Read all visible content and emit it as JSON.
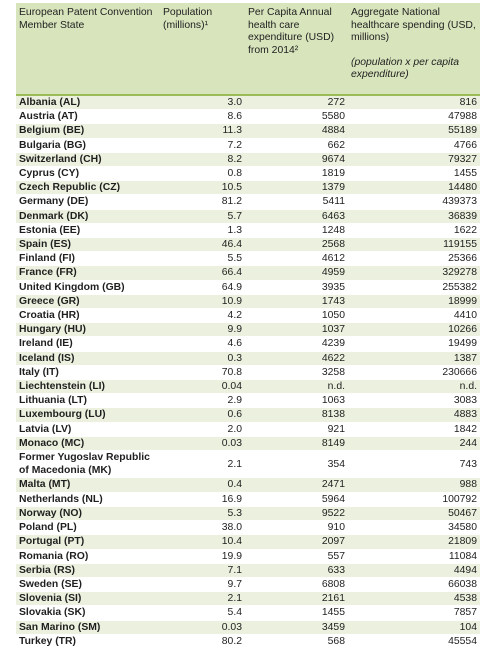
{
  "table": {
    "header": [
      "European Patent Convention Member State",
      "Population (millions)¹",
      "Per Capita Annual health care expenditure (USD) from 2014²",
      "Aggregate National healthcare spending (USD, millions)"
    ],
    "header_note": "(population x per capita expenditure)",
    "rows": [
      [
        "Albania (AL)",
        "3.0",
        "272",
        "816"
      ],
      [
        "Austria (AT)",
        "8.6",
        "5580",
        "47988"
      ],
      [
        "Belgium (BE)",
        "11.3",
        "4884",
        "55189"
      ],
      [
        "Bulgaria (BG)",
        "7.2",
        "662",
        "4766"
      ],
      [
        "Switzerland (CH)",
        "8.2",
        "9674",
        "79327"
      ],
      [
        "Cyprus (CY)",
        "0.8",
        "1819",
        "1455"
      ],
      [
        "Czech Republic (CZ)",
        "10.5",
        "1379",
        "14480"
      ],
      [
        "Germany (DE)",
        "81.2",
        "5411",
        "439373"
      ],
      [
        "Denmark (DK)",
        "5.7",
        "6463",
        "36839"
      ],
      [
        "Estonia (EE)",
        "1.3",
        "1248",
        "1622"
      ],
      [
        "Spain (ES)",
        "46.4",
        "2568",
        "119155"
      ],
      [
        "Finland (FI)",
        "5.5",
        "4612",
        "25366"
      ],
      [
        "France (FR)",
        "66.4",
        "4959",
        "329278"
      ],
      [
        "United Kingdom (GB)",
        "64.9",
        "3935",
        "255382"
      ],
      [
        "Greece (GR)",
        "10.9",
        "1743",
        "18999"
      ],
      [
        "Croatia (HR)",
        "4.2",
        "1050",
        "4410"
      ],
      [
        "Hungary (HU)",
        "9.9",
        "1037",
        "10266"
      ],
      [
        "Ireland (IE)",
        "4.6",
        "4239",
        "19499"
      ],
      [
        "Iceland (IS)",
        "0.3",
        "4622",
        "1387"
      ],
      [
        "Italy (IT)",
        "70.8",
        "3258",
        "230666"
      ],
      [
        "Liechtenstein (LI)",
        "0.04",
        "n.d.",
        "n.d."
      ],
      [
        "Lithuania (LT)",
        "2.9",
        "1063",
        "3083"
      ],
      [
        "Luxembourg (LU)",
        "0.6",
        "8138",
        "4883"
      ],
      [
        "Latvia (LV)",
        "2.0",
        "921",
        "1842"
      ],
      [
        "Monaco (MC)",
        "0.03",
        "8149",
        "244"
      ],
      [
        "Former Yugoslav Republic of Macedonia (MK)",
        "2.1",
        "354",
        "743"
      ],
      [
        "Malta (MT)",
        "0.4",
        "2471",
        "988"
      ],
      [
        "Netherlands (NL)",
        "16.9",
        "5964",
        "100792"
      ],
      [
        "Norway (NO)",
        "5.3",
        "9522",
        "50467"
      ],
      [
        "Poland (PL)",
        "38.0",
        "910",
        "34580"
      ],
      [
        "Portugal (PT)",
        "10.4",
        "2097",
        "21809"
      ],
      [
        "Romania (RO)",
        "19.9",
        "557",
        "11084"
      ],
      [
        "Serbia (RS)",
        "7.1",
        "633",
        "4494"
      ],
      [
        "Sweden (SE)",
        "9.7",
        "6808",
        "66038"
      ],
      [
        "Slovenia (SI)",
        "2.1",
        "2161",
        "4538"
      ],
      [
        "Slovakia (SK)",
        "5.4",
        "1455",
        "7857"
      ],
      [
        "San Marino (SM)",
        "0.03",
        "3459",
        "104"
      ],
      [
        "Turkey (TR)",
        "80.2",
        "568",
        "45554"
      ]
    ]
  }
}
